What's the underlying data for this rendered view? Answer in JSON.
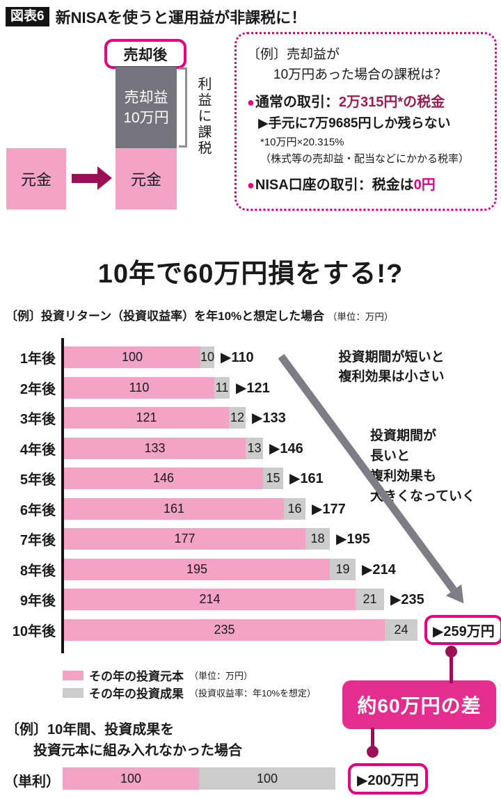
{
  "header": {
    "tag": "図表6",
    "title": "新NISAを使うと運用益が非課税に！"
  },
  "diagram": {
    "after_sale_label": "売却後",
    "gain_line1": "売却益",
    "gain_line2": "10万円",
    "principal_label_left": "元金",
    "principal_label_right": "元金",
    "tax_note": "利益に課税"
  },
  "example_box": {
    "title_line1": "〔例〕売却益が",
    "title_line2": "10万円あった場合の課税は？",
    "item1_bullet": "●",
    "item1_label": "通常の取引：",
    "item1_value": "2万315円*の税金",
    "item1_result": "▶手元に7万9685円しか残らない",
    "item1_note1": "*10万円×20.315%",
    "item1_note2": "（株式等の売却益・配当などにかかる税率）",
    "item2_bullet": "●",
    "item2_label": "NISA口座の取引：税金は",
    "item2_value": "0円"
  },
  "section": {
    "title": "10年で60万円損をする!?",
    "subtitle": "〔例〕投資リターン（投資収益率）を年10%と想定した場合",
    "subtitle_unit": "（単位：万円）"
  },
  "chart_data": [
    {
      "type": "bar",
      "stacked": true,
      "orientation": "horizontal",
      "title": "10年で60万円損をする!?",
      "unit": "万円",
      "assumed_return": "年10%",
      "categories": [
        "1年後",
        "2年後",
        "3年後",
        "4年後",
        "5年後",
        "6年後",
        "7年後",
        "8年後",
        "9年後",
        "10年後"
      ],
      "series": [
        {
          "name": "その年の投資元本",
          "values": [
            100,
            110,
            121,
            133,
            146,
            161,
            177,
            195,
            214,
            235
          ]
        },
        {
          "name": "その年の投資成果",
          "values": [
            10,
            11,
            12,
            13,
            15,
            16,
            18,
            19,
            21,
            24
          ]
        }
      ],
      "totals": [
        110,
        121,
        133,
        146,
        161,
        177,
        195,
        214,
        235,
        259
      ],
      "total_labels": [
        "▶110",
        "▶121",
        "▶133",
        "▶146",
        "▶161",
        "▶177",
        "▶195",
        "▶214",
        "▶235",
        "▶259万円"
      ],
      "legend_position": "bottom",
      "grid": false
    },
    {
      "type": "bar",
      "stacked": true,
      "orientation": "horizontal",
      "title": "単利（投資成果を組み入れない場合）",
      "unit": "万円",
      "categories": [
        "（単利）"
      ],
      "series": [
        {
          "name": "投資元本",
          "values": [
            100
          ]
        },
        {
          "name": "投資成果",
          "values": [
            100
          ]
        }
      ],
      "totals": [
        200
      ],
      "total_labels": [
        "▶200万円"
      ]
    }
  ],
  "annotations": {
    "short_term": "投資期間が短いと\n複利効果は小さい",
    "long_term": "投資期間が\n長いと\n複利効果も\n大きくなっていく"
  },
  "legend": [
    {
      "label": "その年の投資元本",
      "note": "（単位：万円）"
    },
    {
      "label": "その年の投資成果",
      "note": "（投資収益率：年10%を想定）"
    }
  ],
  "bottom": {
    "example_line1": "〔例〕10年間、投資成果を",
    "example_line2": "投資元本に組み入れなかった場合",
    "row_label": "（単利）",
    "principal_value": "100",
    "gain_value": "100",
    "total_label": "▶200万円",
    "diff_label": "約60万円の差"
  },
  "colors": {
    "accent_magenta": "#e4007f",
    "dark_magenta": "#9b0f56",
    "bar_pink": "#f3a3c4",
    "bar_gray": "#cccccc",
    "box_dark_gray": "#75747c",
    "arrow_gray": "#7e7d85",
    "diff_box_fill": "#e52d8f",
    "tax_value_red": "#9c1c51",
    "text_black": "#1a1a1a"
  }
}
